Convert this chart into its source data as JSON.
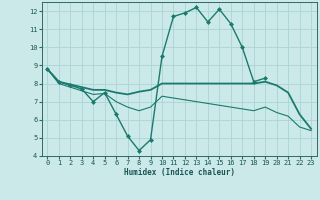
{
  "xlabel": "Humidex (Indice chaleur)",
  "xlim": [
    -0.5,
    23.5
  ],
  "ylim": [
    4,
    12.5
  ],
  "yticks": [
    4,
    5,
    6,
    7,
    8,
    9,
    10,
    11,
    12
  ],
  "xticks": [
    0,
    1,
    2,
    3,
    4,
    5,
    6,
    7,
    8,
    9,
    10,
    11,
    12,
    13,
    14,
    15,
    16,
    17,
    18,
    19,
    20,
    21,
    22,
    23
  ],
  "background_color": "#cce9e9",
  "grid_color": "#aad4d4",
  "line_color": "#1a7a6e",
  "lines": [
    {
      "x": [
        0,
        1,
        2,
        3,
        4,
        5,
        6,
        7,
        8,
        9,
        10,
        11,
        12,
        13,
        14,
        15,
        16,
        17,
        18,
        19
      ],
      "y": [
        8.8,
        8.1,
        7.9,
        7.7,
        7.0,
        7.5,
        6.3,
        5.1,
        4.3,
        4.9,
        9.5,
        11.7,
        11.9,
        12.2,
        11.4,
        12.1,
        11.3,
        10.0,
        8.1,
        8.3
      ],
      "marker": "D",
      "markersize": 2.0,
      "linewidth": 1.0
    },
    {
      "x": [
        0,
        1,
        2,
        3,
        4,
        5,
        6,
        7,
        8,
        9,
        10,
        11,
        12,
        13,
        14,
        15,
        16,
        17,
        18,
        19,
        20,
        21,
        22,
        23
      ],
      "y": [
        8.8,
        8.1,
        7.95,
        7.8,
        7.65,
        7.65,
        7.5,
        7.4,
        7.55,
        7.65,
        8.0,
        8.0,
        8.0,
        8.0,
        8.0,
        8.0,
        8.0,
        8.0,
        8.0,
        8.1,
        7.9,
        7.5,
        6.3,
        5.5
      ],
      "marker": null,
      "markersize": 0,
      "linewidth": 1.3
    },
    {
      "x": [
        0,
        1,
        2,
        3,
        4,
        5,
        6,
        7,
        8,
        9,
        10,
        11,
        12,
        13,
        14,
        15,
        16,
        17,
        18,
        19,
        20,
        21,
        22,
        23
      ],
      "y": [
        8.8,
        8.0,
        7.8,
        7.6,
        7.4,
        7.45,
        7.0,
        6.7,
        6.5,
        6.7,
        7.3,
        7.2,
        7.1,
        7.0,
        6.9,
        6.8,
        6.7,
        6.6,
        6.5,
        6.7,
        6.4,
        6.2,
        5.6,
        5.4
      ],
      "marker": null,
      "markersize": 0,
      "linewidth": 0.8
    }
  ]
}
